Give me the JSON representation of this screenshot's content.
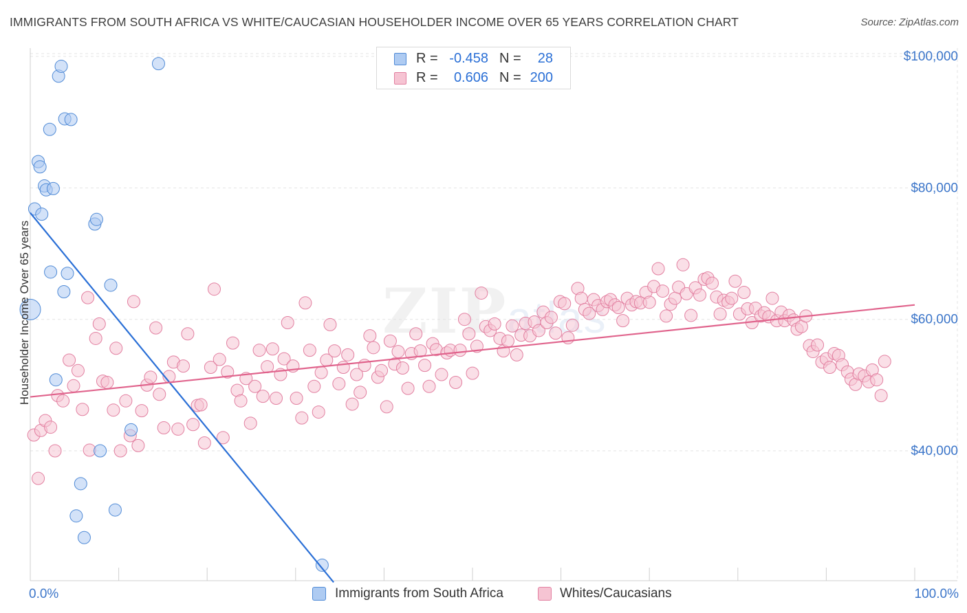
{
  "title": "IMMIGRANTS FROM SOUTH AFRICA VS WHITE/CAUCASIAN HOUSEHOLDER INCOME OVER 65 YEARS CORRELATION CHART",
  "source": "Source: ZipAtlas.com",
  "watermark": {
    "main": "ZIP",
    "sub": "atlas"
  },
  "legend_top": {
    "rows": [
      {
        "r_label": "R =",
        "r_value": "-0.458",
        "n_label": "N =",
        "n_value": "28"
      },
      {
        "r_label": "R =",
        "r_value": "0.606",
        "n_label": "N =",
        "n_value": "200"
      }
    ]
  },
  "colors": {
    "blue_fill": "#aecbf2",
    "blue_stroke": "#4f8ad6",
    "blue_line": "#2a6fd6",
    "pink_fill": "#f6c4d3",
    "pink_stroke": "#e27fa0",
    "pink_line": "#e0638c",
    "grid": "#e3e3e3",
    "axis": "#cfcfcf",
    "tick_text": "#3b75c9"
  },
  "chart_data": {
    "type": "scatter",
    "title": "IMMIGRANTS FROM SOUTH AFRICA VS WHITE/CAUCASIAN HOUSEHOLDER INCOME OVER 65 YEARS CORRELATION CHART",
    "xlabel": "",
    "ylabel": "Householder Income Over 65 years",
    "xlim": [
      0,
      100
    ],
    "ylim": [
      21000,
      103000
    ],
    "x_tick_labels": [
      {
        "value": 0,
        "label": "0.0%"
      },
      {
        "value": 100,
        "label": "100.0%"
      }
    ],
    "x_minor_ticks": [
      0,
      10,
      20,
      30,
      40,
      50,
      60,
      70,
      80,
      90,
      100
    ],
    "y_ticks": [
      {
        "value": 100000,
        "label": "$100,000"
      },
      {
        "value": 80000,
        "label": "$80,000"
      },
      {
        "value": 60000,
        "label": "$60,000"
      },
      {
        "value": 40000,
        "label": "$40,000"
      }
    ],
    "grid": true,
    "series": [
      {
        "name": "Immigrants from South Africa",
        "color": "blue",
        "R": -0.458,
        "N": 28,
        "trend": {
          "x0": 0,
          "y0": 76200,
          "x1": 34.3,
          "y1": 20000
        },
        "points": [
          [
            0.0,
            61500,
            15
          ],
          [
            0.5,
            76800,
            9
          ],
          [
            1.3,
            76000,
            9
          ],
          [
            0.9,
            84000,
            9
          ],
          [
            1.1,
            83200,
            9
          ],
          [
            1.6,
            80300,
            9
          ],
          [
            1.8,
            79700,
            9
          ],
          [
            2.6,
            79900,
            9
          ],
          [
            2.2,
            88900,
            9
          ],
          [
            3.2,
            97000,
            9
          ],
          [
            3.5,
            98500,
            9
          ],
          [
            3.9,
            90500,
            9
          ],
          [
            4.6,
            90400,
            9
          ],
          [
            2.3,
            67200,
            9
          ],
          [
            4.2,
            67000,
            9
          ],
          [
            3.8,
            64200,
            9
          ],
          [
            7.3,
            74500,
            9
          ],
          [
            7.5,
            75200,
            9
          ],
          [
            9.1,
            65200,
            9
          ],
          [
            14.5,
            98900,
            9
          ],
          [
            2.9,
            50800,
            9
          ],
          [
            5.7,
            35000,
            9
          ],
          [
            5.2,
            30100,
            9
          ],
          [
            6.1,
            26800,
            9
          ],
          [
            7.9,
            40000,
            9
          ],
          [
            9.6,
            31000,
            9
          ],
          [
            11.4,
            43200,
            9
          ],
          [
            33.0,
            22600,
            9
          ]
        ]
      },
      {
        "name": "Whites/Caucasians",
        "color": "pink",
        "R": 0.606,
        "N": 200,
        "trend": {
          "x0": 0,
          "y0": 48200,
          "x1": 100,
          "y1": 62200
        },
        "points": [
          [
            0.4,
            42400
          ],
          [
            0.9,
            35800
          ],
          [
            1.2,
            43100
          ],
          [
            1.7,
            44600
          ],
          [
            2.3,
            43600
          ],
          [
            2.8,
            40000
          ],
          [
            3.1,
            48400
          ],
          [
            3.7,
            47600
          ],
          [
            4.4,
            53800
          ],
          [
            4.9,
            49900
          ],
          [
            5.4,
            52200
          ],
          [
            5.9,
            46300
          ],
          [
            6.5,
            63300
          ],
          [
            6.7,
            40100
          ],
          [
            7.4,
            57100
          ],
          [
            7.8,
            59300
          ],
          [
            8.2,
            50600
          ],
          [
            8.7,
            50400
          ],
          [
            9.4,
            46200
          ],
          [
            9.7,
            55600
          ],
          [
            10.2,
            40000
          ],
          [
            10.8,
            47600
          ],
          [
            11.3,
            42300
          ],
          [
            11.7,
            62700
          ],
          [
            12.2,
            40800
          ],
          [
            12.6,
            46100
          ],
          [
            13.2,
            50000
          ],
          [
            13.6,
            51200
          ],
          [
            14.2,
            58700
          ],
          [
            14.6,
            48600
          ],
          [
            15.1,
            43500
          ],
          [
            15.7,
            51300
          ],
          [
            16.2,
            53500
          ],
          [
            16.7,
            43300
          ],
          [
            17.3,
            52900
          ],
          [
            17.8,
            57800
          ],
          [
            18.4,
            44000
          ],
          [
            18.9,
            46900
          ],
          [
            19.3,
            47000
          ],
          [
            19.7,
            41200
          ],
          [
            20.4,
            52700
          ],
          [
            20.8,
            64600
          ],
          [
            21.4,
            53900
          ],
          [
            21.8,
            42000
          ],
          [
            22.3,
            52000
          ],
          [
            22.9,
            56400
          ],
          [
            23.4,
            49200
          ],
          [
            23.8,
            47600
          ],
          [
            24.4,
            51000
          ],
          [
            24.9,
            44200
          ],
          [
            25.4,
            49800
          ],
          [
            25.9,
            55300
          ],
          [
            26.3,
            48300
          ],
          [
            26.8,
            52800
          ],
          [
            27.4,
            55500
          ],
          [
            27.8,
            48000
          ],
          [
            28.3,
            51600
          ],
          [
            28.7,
            54000
          ],
          [
            29.1,
            59500
          ],
          [
            29.7,
            52900
          ],
          [
            30.1,
            48000
          ],
          [
            30.7,
            45000
          ],
          [
            31.1,
            62500
          ],
          [
            31.6,
            55300
          ],
          [
            32.1,
            49800
          ],
          [
            32.6,
            45900
          ],
          [
            32.9,
            51900
          ],
          [
            33.5,
            53800
          ],
          [
            33.9,
            59200
          ],
          [
            34.4,
            55200
          ],
          [
            34.9,
            50200
          ],
          [
            35.4,
            52700
          ],
          [
            35.9,
            54600
          ],
          [
            36.4,
            47100
          ],
          [
            36.9,
            51600
          ],
          [
            37.3,
            48900
          ],
          [
            37.8,
            53000
          ],
          [
            38.4,
            57500
          ],
          [
            38.8,
            55700
          ],
          [
            39.3,
            51200
          ],
          [
            39.7,
            52200
          ],
          [
            40.3,
            46700
          ],
          [
            40.7,
            56700
          ],
          [
            41.2,
            53200
          ],
          [
            41.6,
            55100
          ],
          [
            42.1,
            52600
          ],
          [
            42.7,
            49500
          ],
          [
            43.1,
            54800
          ],
          [
            43.6,
            57800
          ],
          [
            44.1,
            55200
          ],
          [
            44.6,
            53000
          ],
          [
            45.1,
            49800
          ],
          [
            45.5,
            56300
          ],
          [
            45.9,
            55400
          ],
          [
            46.5,
            51600
          ],
          [
            47.1,
            54900
          ],
          [
            47.5,
            55300
          ],
          [
            48.1,
            50400
          ],
          [
            48.6,
            55300
          ],
          [
            49.1,
            60000
          ],
          [
            49.6,
            57800
          ],
          [
            50.0,
            51800
          ],
          [
            50.5,
            55900
          ],
          [
            51.0,
            64000
          ],
          [
            51.5,
            58900
          ],
          [
            52.0,
            58300
          ],
          [
            52.5,
            59300
          ],
          [
            53.1,
            57100
          ],
          [
            53.5,
            55200
          ],
          [
            54.0,
            56700
          ],
          [
            54.5,
            59000
          ],
          [
            55.0,
            54600
          ],
          [
            55.5,
            57600
          ],
          [
            56.0,
            59400
          ],
          [
            56.5,
            57500
          ],
          [
            57.0,
            59600
          ],
          [
            57.5,
            58300
          ],
          [
            58.0,
            61100
          ],
          [
            58.4,
            59500
          ],
          [
            58.9,
            60300
          ],
          [
            59.4,
            57900
          ],
          [
            59.9,
            62700
          ],
          [
            60.4,
            62400
          ],
          [
            60.8,
            57200
          ],
          [
            61.3,
            59100
          ],
          [
            61.9,
            64700
          ],
          [
            62.3,
            63200
          ],
          [
            62.7,
            61500
          ],
          [
            63.2,
            60900
          ],
          [
            63.7,
            63000
          ],
          [
            64.2,
            62100
          ],
          [
            64.7,
            61500
          ],
          [
            65.2,
            62700
          ],
          [
            65.6,
            63000
          ],
          [
            66.1,
            62200
          ],
          [
            66.5,
            61800
          ],
          [
            67.0,
            59800
          ],
          [
            67.5,
            63200
          ],
          [
            68.0,
            62200
          ],
          [
            68.5,
            62700
          ],
          [
            69.0,
            62500
          ],
          [
            69.6,
            64100
          ],
          [
            70.0,
            62600
          ],
          [
            70.5,
            65000
          ],
          [
            71.0,
            67700
          ],
          [
            71.5,
            64300
          ],
          [
            71.9,
            60500
          ],
          [
            72.4,
            62300
          ],
          [
            72.9,
            63200
          ],
          [
            73.3,
            64900
          ],
          [
            73.8,
            68300
          ],
          [
            74.2,
            63900
          ],
          [
            74.7,
            60600
          ],
          [
            75.2,
            64800
          ],
          [
            75.7,
            63700
          ],
          [
            76.2,
            66100
          ],
          [
            76.6,
            66300
          ],
          [
            77.1,
            65500
          ],
          [
            77.6,
            63400
          ],
          [
            78.0,
            60800
          ],
          [
            78.4,
            62900
          ],
          [
            78.9,
            62600
          ],
          [
            79.3,
            63200
          ],
          [
            79.7,
            65800
          ],
          [
            80.2,
            60800
          ],
          [
            80.7,
            64100
          ],
          [
            81.1,
            61600
          ],
          [
            81.6,
            59500
          ],
          [
            82.0,
            61700
          ],
          [
            82.6,
            60500
          ],
          [
            83.0,
            61000
          ],
          [
            83.5,
            60400
          ],
          [
            83.9,
            63200
          ],
          [
            84.4,
            59800
          ],
          [
            84.9,
            61100
          ],
          [
            85.3,
            59800
          ],
          [
            85.8,
            60600
          ],
          [
            86.3,
            59900
          ],
          [
            86.7,
            58500
          ],
          [
            87.2,
            58900
          ],
          [
            87.7,
            60500
          ],
          [
            88.1,
            56000
          ],
          [
            88.5,
            55100
          ],
          [
            89.0,
            56100
          ],
          [
            89.5,
            53500
          ],
          [
            90.0,
            54000
          ],
          [
            90.4,
            52700
          ],
          [
            90.9,
            54800
          ],
          [
            91.4,
            54500
          ],
          [
            91.8,
            53100
          ],
          [
            92.4,
            52000
          ],
          [
            92.8,
            50900
          ],
          [
            93.3,
            50100
          ],
          [
            93.7,
            51700
          ],
          [
            94.3,
            51400
          ],
          [
            94.8,
            50500
          ],
          [
            95.2,
            52300
          ],
          [
            95.7,
            50800
          ],
          [
            96.2,
            48400
          ],
          [
            96.6,
            53600
          ]
        ]
      }
    ]
  },
  "legend_bottom": [
    {
      "label": "Immigrants from South Africa",
      "color": "blue"
    },
    {
      "label": "Whites/Caucasians",
      "color": "pink"
    }
  ]
}
